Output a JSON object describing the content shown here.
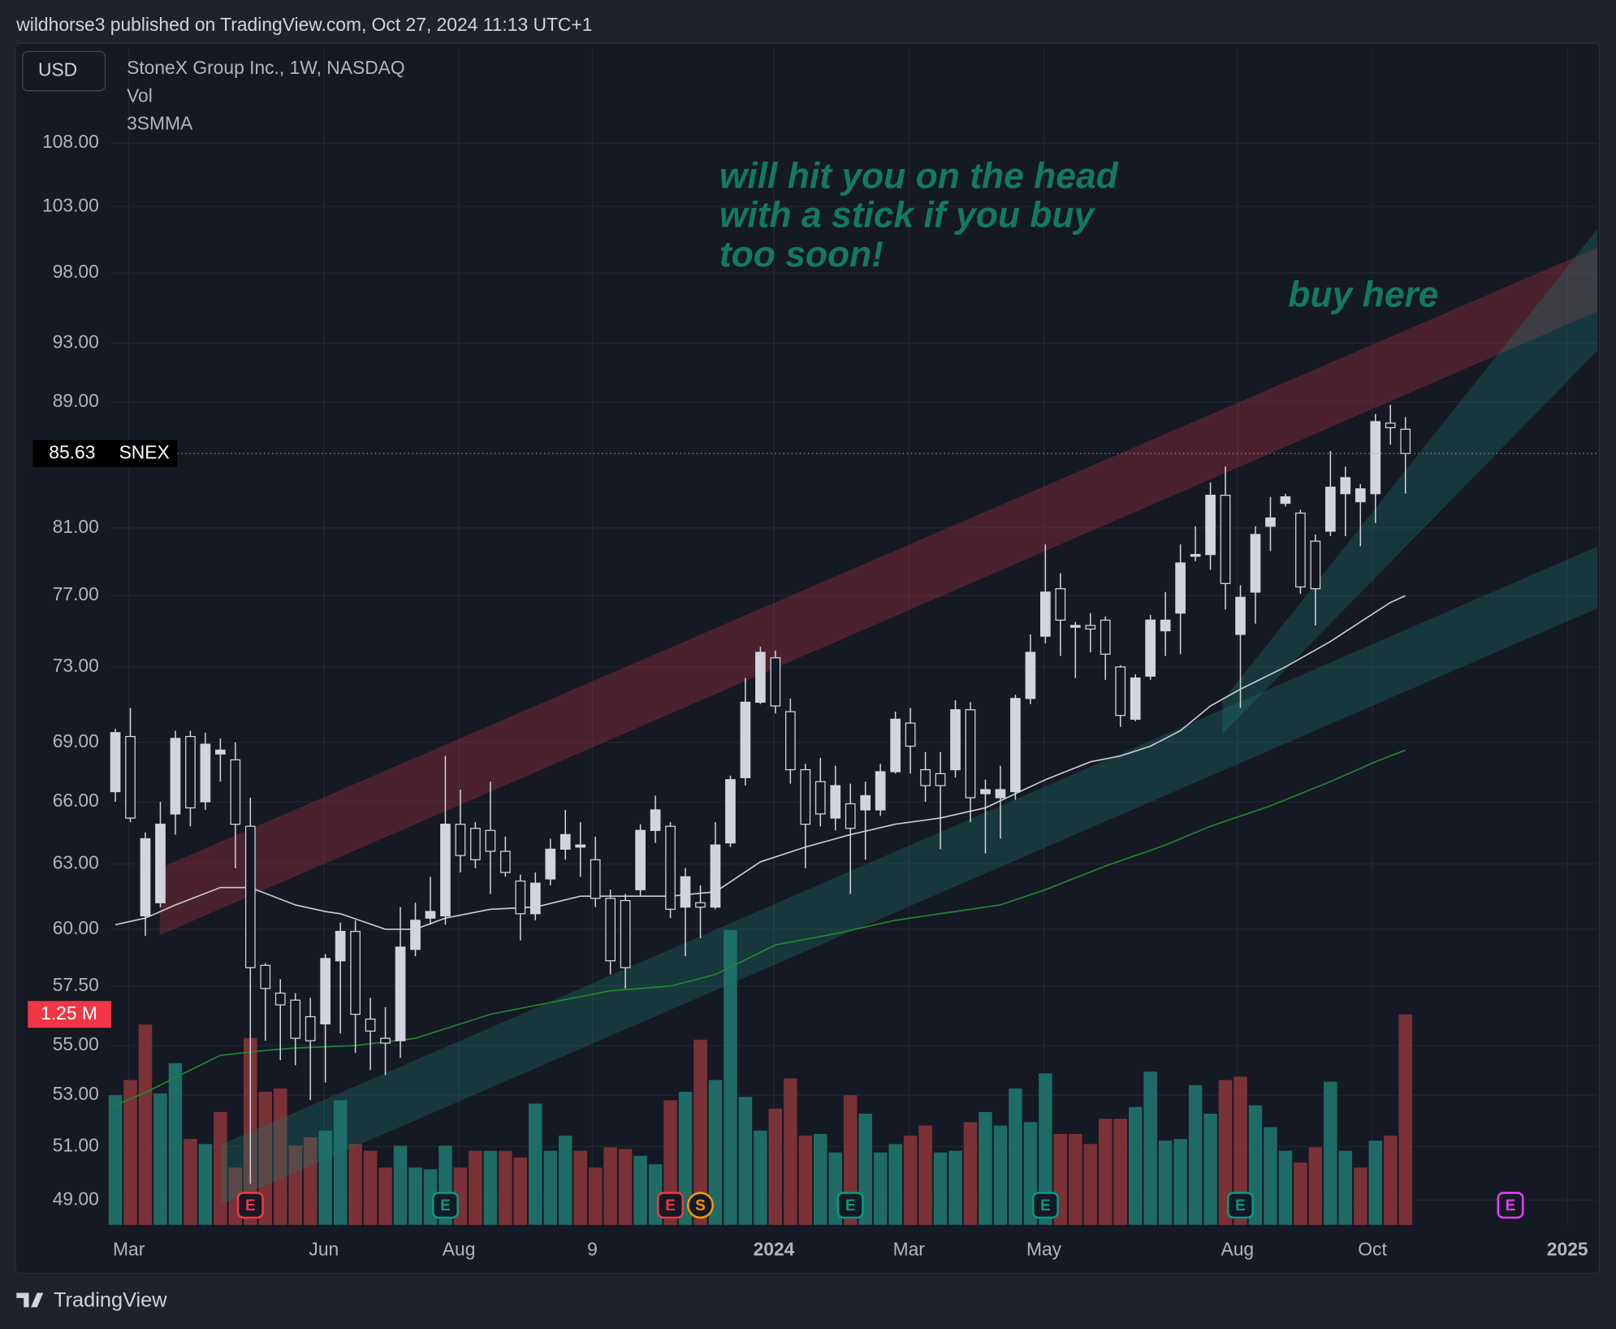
{
  "published": "wildhorse3 published on TradingView.com, Oct 27, 2024 11:13 UTC+1",
  "brand": "TradingView",
  "chart_data": {
    "type": "candlestick",
    "title": "StoneX Group Inc., 1W, NASDAQ",
    "currency": "USD",
    "symbol": "SNEX",
    "indicators": [
      "Vol",
      "3SMMA"
    ],
    "annotations": [
      "will hit you on the head",
      "with a stick if you buy",
      "too soon!",
      "buy here"
    ],
    "log_scale": true,
    "grid": true,
    "up_color": "#d1d4dc",
    "down_color": "#131722",
    "volume_up_color": "#1f6b66",
    "volume_down_color": "#7a3236",
    "xlim": [
      -0.27,
      98.8
    ],
    "xticks": [
      {
        "value": 0.9,
        "label": "Mar"
      },
      {
        "value": 13.9,
        "label": "Jun"
      },
      {
        "value": 22.9,
        "label": "Aug"
      },
      {
        "value": 31.8,
        "label": "9"
      },
      {
        "value": 43.9,
        "label": "2024"
      },
      {
        "value": 52.9,
        "label": "Mar"
      },
      {
        "value": 61.9,
        "label": "May"
      },
      {
        "value": 74.8,
        "label": "Aug"
      },
      {
        "value": 83.8,
        "label": "Oct"
      },
      {
        "value": 96.8,
        "label": "2025"
      }
    ],
    "ylim": [
      48.1,
      116.1
    ],
    "yticks": [
      {
        "value": 108,
        "label": "108.00"
      },
      {
        "value": 103,
        "label": "103.00"
      },
      {
        "value": 98,
        "label": "98.00"
      },
      {
        "value": 93,
        "label": "93.00"
      },
      {
        "value": 89,
        "label": "89.00"
      },
      {
        "value": 81,
        "label": "81.00"
      },
      {
        "value": 77,
        "label": "77.00"
      },
      {
        "value": 73,
        "label": "73.00"
      },
      {
        "value": 69,
        "label": "69.00"
      },
      {
        "value": 66,
        "label": "66.00"
      },
      {
        "value": 63,
        "label": "63.00"
      },
      {
        "value": 60,
        "label": "60.00"
      },
      {
        "value": 57.5,
        "label": "57.50"
      },
      {
        "value": 55,
        "label": "55.00"
      },
      {
        "value": 53,
        "label": "53.00"
      },
      {
        "value": 51,
        "label": "51.00"
      },
      {
        "value": 49,
        "label": "49.00"
      }
    ],
    "volume_lim": [
      0,
      7000000
    ],
    "volume_label": "1.25 M",
    "open": [
      66.5,
      69.3,
      60.6,
      61.2,
      65.4,
      69.3,
      66,
      68.4,
      68.1,
      64.8,
      58.4,
      57.2,
      56.9,
      56.2,
      55.9,
      58.6,
      59.9,
      56.1,
      55.3,
      55.2,
      59.1,
      60.5,
      60.6,
      64.9,
      64.7,
      64.6,
      63.6,
      62.2,
      60.7,
      62.3,
      63.7,
      63.8,
      63.2,
      61.4,
      61.3,
      61.8,
      64.6,
      64.8,
      61,
      61.2,
      61,
      64,
      67.2,
      71.1,
      73.5,
      70.6,
      67.6,
      67,
      65.2,
      65.9,
      65.6,
      65.6,
      67.5,
      70,
      67.6,
      67.4,
      67.6,
      70.7,
      66.4,
      66.2,
      66.5,
      71.3,
      74.7,
      77.4,
      75.2,
      75.3,
      75.6,
      73,
      70.2,
      72.5,
      75,
      76,
      79.3,
      79.4,
      83,
      74.8,
      77.2,
      81.1,
      82.5,
      81.9,
      80.2,
      80.8,
      83.1,
      82.6,
      83.1,
      87.6,
      87.2
    ],
    "high": [
      69.7,
      70.8,
      64.5,
      66,
      69.6,
      69.6,
      69.5,
      69.2,
      69,
      66.2,
      58.5,
      57.8,
      57.2,
      57,
      58.9,
      60.3,
      60.4,
      57,
      56.6,
      61,
      61.2,
      62.4,
      68.3,
      66.6,
      65,
      67,
      64.3,
      62.5,
      62.6,
      64.2,
      65.6,
      65,
      64.3,
      61.8,
      61.6,
      64.9,
      66.3,
      65,
      62.8,
      62,
      65,
      67.3,
      72.4,
      74.1,
      73.9,
      71.3,
      67.9,
      68.2,
      67.8,
      66.9,
      67,
      67.9,
      70.6,
      70.8,
      68.5,
      68.5,
      71.2,
      71.1,
      67.1,
      67.8,
      71.5,
      74.8,
      80,
      78.3,
      75.5,
      76,
      75.8,
      73.1,
      72.6,
      75.9,
      77.2,
      80,
      81.1,
      83.8,
      84.8,
      77.6,
      81.1,
      82.9,
      83.1,
      82.1,
      80.6,
      85.8,
      84.8,
      83.7,
      88.2,
      88.8,
      88
    ],
    "low": [
      66,
      65,
      59.7,
      61,
      64.4,
      64.8,
      65.6,
      67,
      62.8,
      49.6,
      55.2,
      54.4,
      54.2,
      52.8,
      53.5,
      55.5,
      54.7,
      54,
      53.8,
      54.5,
      58.8,
      60.2,
      60.2,
      62.6,
      62.8,
      61.6,
      62.4,
      59.5,
      60.4,
      62,
      63.2,
      62.4,
      61,
      58,
      57.4,
      61.5,
      64,
      60.5,
      58.8,
      59.6,
      60.9,
      63.8,
      66.8,
      71,
      70.5,
      66.9,
      62.8,
      64.8,
      64.6,
      61.6,
      63.2,
      65.3,
      67.4,
      67.4,
      66,
      63.7,
      67.2,
      65,
      63.5,
      64.2,
      66.1,
      71,
      74.3,
      73.6,
      72.4,
      73.8,
      72.3,
      69.8,
      70.1,
      72.3,
      73.6,
      73.7,
      79,
      78.5,
      76.2,
      70.8,
      75.4,
      79.6,
      82.3,
      77.1,
      75.3,
      80.5,
      80.5,
      79.9,
      81.3,
      86.2,
      83.1
    ],
    "close": [
      69.5,
      65.2,
      64.2,
      64.9,
      69.2,
      65.7,
      68.9,
      68.6,
      64.9,
      58.3,
      57.4,
      56.7,
      55.3,
      55.2,
      58.7,
      59.9,
      56.3,
      55.6,
      55.1,
      59.2,
      60.4,
      60.8,
      64.9,
      63.4,
      63.2,
      63.6,
      62.6,
      60.7,
      62.1,
      63.7,
      64.4,
      63.9,
      61.4,
      58.6,
      58.3,
      64.6,
      65.6,
      60.9,
      62.4,
      61.0,
      63.9,
      67.1,
      71.1,
      73.8,
      70.9,
      67.6,
      64.9,
      65.4,
      66.8,
      64.7,
      66.3,
      67.5,
      70.2,
      68.8,
      66.8,
      66.8,
      70.7,
      66.2,
      66.6,
      66.6,
      71.3,
      73.8,
      77.2,
      75.6,
      75.3,
      75.1,
      73.7,
      70.4,
      72.4,
      75.6,
      75.6,
      78.9,
      79.4,
      83,
      77.7,
      76.9,
      80.6,
      81.6,
      82.9,
      77.5,
      77.4,
      83.5,
      84.1,
      83.4,
      87.7,
      87.3,
      85.63
    ],
    "volume": [
      770000,
      860000,
      1190000,
      780000,
      960000,
      510000,
      480000,
      670000,
      340000,
      1110000,
      790000,
      810000,
      470000,
      520000,
      560000,
      740000,
      480000,
      440000,
      340000,
      470000,
      340000,
      330000,
      470000,
      340000,
      440000,
      440000,
      440000,
      400000,
      720000,
      440000,
      530000,
      440000,
      340000,
      460000,
      450000,
      410000,
      360000,
      740000,
      790000,
      1100000,
      860000,
      1750000,
      760000,
      560000,
      690000,
      870000,
      530000,
      540000,
      430000,
      770000,
      660000,
      430000,
      480000,
      530000,
      590000,
      430000,
      440000,
      610000,
      670000,
      590000,
      810000,
      610000,
      900000,
      540000,
      540000,
      480000,
      630000,
      630000,
      700000,
      910000,
      500000,
      510000,
      830000,
      660000,
      860000,
      880000,
      710000,
      580000,
      440000,
      370000,
      460000,
      850000,
      440000,
      340000,
      500000,
      530000,
      1250000
    ],
    "series": [
      {
        "color": "#c9ccd4",
        "x": [
          0,
          2,
          4,
          7,
          9,
          12,
          14,
          15,
          18,
          20,
          22,
          25,
          28,
          31,
          34,
          37,
          40,
          43,
          46,
          49,
          52,
          55,
          58,
          60,
          62,
          65,
          67,
          69,
          71,
          73,
          75,
          78,
          81,
          83,
          85,
          86
        ],
        "values": [
          60.2,
          60.5,
          61.1,
          61.9,
          61.9,
          61.1,
          60.8,
          60.7,
          60.0,
          60.0,
          60.5,
          60.9,
          61.0,
          61.5,
          61.5,
          61.5,
          61.7,
          63.1,
          63.8,
          64.4,
          64.9,
          65.2,
          65.7,
          66.4,
          67.1,
          68.0,
          68.3,
          68.8,
          69.6,
          70.9,
          71.8,
          73.0,
          74.4,
          75.5,
          76.6,
          77.0
        ]
      },
      {
        "color": "#1f8a2e",
        "x": [
          0,
          2,
          4,
          7,
          10,
          12,
          16,
          20,
          25,
          29,
          33,
          37,
          40,
          44,
          48,
          52,
          55,
          59,
          62,
          66,
          70,
          73,
          77,
          81,
          84,
          86
        ],
        "values": [
          52.6,
          53.1,
          53.7,
          54.6,
          54.8,
          54.9,
          55.0,
          55.3,
          56.3,
          56.8,
          57.3,
          57.5,
          58.0,
          59.3,
          59.8,
          60.4,
          60.7,
          61.1,
          61.8,
          62.9,
          63.9,
          64.8,
          65.8,
          67.0,
          68.0,
          68.6
        ]
      }
    ],
    "events": [
      {
        "x": 9,
        "label": "E",
        "color": "#f23645"
      },
      {
        "x": 22,
        "label": "E",
        "color": "#089981"
      },
      {
        "x": 37,
        "label": "E",
        "color": "#f23645"
      },
      {
        "x": 39,
        "label": "S",
        "color": "#ff9800"
      },
      {
        "x": 49,
        "label": "E",
        "color": "#089981"
      },
      {
        "x": 62,
        "label": "E",
        "color": "#089981"
      },
      {
        "x": 75,
        "label": "E",
        "color": "#089981"
      },
      {
        "x": 93,
        "label": "E",
        "color": "#e040fb"
      }
    ]
  }
}
